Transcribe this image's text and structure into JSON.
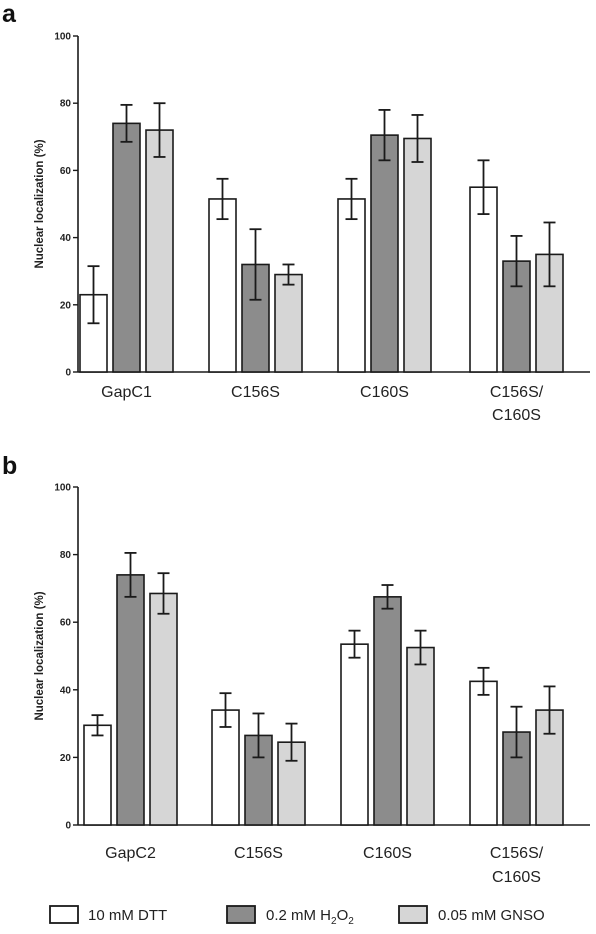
{
  "legend": {
    "entries": [
      {
        "prefix": "10 mM DTT",
        "sub": "",
        "suffix": ""
      },
      {
        "prefix": "0.2 mM H",
        "sub": "2",
        "suffix": "O",
        "sub2": "2"
      },
      {
        "prefix": "0.05 mM GNSO",
        "sub": "",
        "suffix": ""
      }
    ]
  },
  "colors": {
    "series": [
      "#ffffff",
      "#8c8c8c",
      "#d6d6d6"
    ],
    "stroke": "#1a1a1a"
  },
  "chart_data": [
    {
      "type": "bar",
      "panel": "a",
      "ylabel": "Nuclear localization (%)",
      "ylim": [
        0,
        100
      ],
      "yticks": [
        0,
        20,
        40,
        60,
        80,
        100
      ],
      "categories": [
        [
          "GapC1"
        ],
        [
          "C156S"
        ],
        [
          "C160S"
        ],
        [
          "C156S/",
          "C160S"
        ]
      ],
      "series": [
        {
          "name": "10 mM DTT",
          "values": [
            23,
            51.5,
            51.5,
            55
          ],
          "errors": [
            8.5,
            6,
            6,
            8
          ]
        },
        {
          "name": "0.2 mM H2O2",
          "values": [
            74,
            32,
            70.5,
            33
          ],
          "errors": [
            5.5,
            10.5,
            7.5,
            7.5
          ]
        },
        {
          "name": "0.05 mM GNSO",
          "values": [
            72,
            29,
            69.5,
            35
          ],
          "errors": [
            8,
            3,
            7,
            9.5
          ]
        }
      ]
    },
    {
      "type": "bar",
      "panel": "b",
      "ylabel": "Nuclear localization (%)",
      "ylim": [
        0,
        100
      ],
      "yticks": [
        0,
        20,
        40,
        60,
        80,
        100
      ],
      "categories": [
        [
          "GapC2"
        ],
        [
          "C156S"
        ],
        [
          "C160S"
        ],
        [
          "C156S/",
          "C160S"
        ]
      ],
      "series": [
        {
          "name": "10 mM DTT",
          "values": [
            29.5,
            34,
            53.5,
            42.5
          ],
          "errors": [
            3,
            5,
            4,
            4
          ]
        },
        {
          "name": "0.2 mM H2O2",
          "values": [
            74,
            26.5,
            67.5,
            27.5
          ],
          "errors": [
            6.5,
            6.5,
            3.5,
            7.5
          ]
        },
        {
          "name": "0.05 mM GNSO",
          "values": [
            68.5,
            24.5,
            52.5,
            34
          ],
          "errors": [
            6,
            5.5,
            5,
            7
          ]
        }
      ]
    }
  ]
}
